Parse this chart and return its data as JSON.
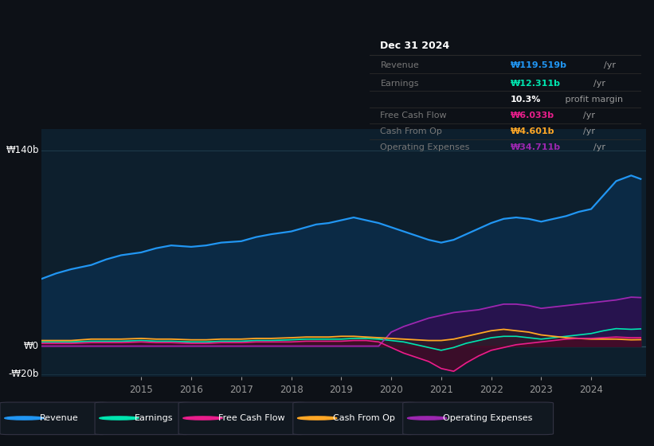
{
  "bg_color": "#0d1117",
  "plot_bg_color": "#0d1f2d",
  "revenue_color": "#2196f3",
  "earnings_color": "#00e5b0",
  "fcf_color": "#e91e8c",
  "cashfromop_color": "#ffa726",
  "opex_color": "#9c27b0",
  "ylabel_140": "₩140b",
  "ylabel_0": "₩0",
  "ylabel_neg20": "-₩20b",
  "years": [
    2013.0,
    2013.3,
    2013.6,
    2014.0,
    2014.3,
    2014.6,
    2015.0,
    2015.3,
    2015.6,
    2016.0,
    2016.3,
    2016.6,
    2017.0,
    2017.3,
    2017.6,
    2018.0,
    2018.3,
    2018.5,
    2018.75,
    2019.0,
    2019.25,
    2019.5,
    2019.75,
    2020.0,
    2020.25,
    2020.5,
    2020.75,
    2021.0,
    2021.25,
    2021.5,
    2021.75,
    2022.0,
    2022.25,
    2022.5,
    2022.75,
    2023.0,
    2023.25,
    2023.5,
    2023.75,
    2024.0,
    2024.25,
    2024.5,
    2024.8,
    2024.99
  ],
  "revenue": [
    48,
    52,
    55,
    58,
    62,
    65,
    67,
    70,
    72,
    71,
    72,
    74,
    75,
    78,
    80,
    82,
    85,
    87,
    88,
    90,
    92,
    90,
    88,
    85,
    82,
    79,
    76,
    74,
    76,
    80,
    84,
    88,
    91,
    92,
    91,
    89,
    91,
    93,
    96,
    98,
    108,
    118,
    122,
    119.519
  ],
  "earnings": [
    3,
    3,
    3,
    3.5,
    3.5,
    3.5,
    4,
    3.5,
    3.5,
    3,
    3,
    3.5,
    3.5,
    4,
    4,
    4.5,
    5,
    5,
    5,
    5,
    5.5,
    5.5,
    5,
    4,
    3,
    1,
    -1,
    -3,
    -1,
    2,
    4,
    6,
    7,
    7,
    6,
    5,
    6,
    7,
    8,
    9,
    11,
    12.5,
    12,
    12.311
  ],
  "fcf": [
    2,
    2,
    2,
    2.5,
    2.5,
    2.5,
    3,
    2.5,
    2.5,
    2,
    2,
    2.5,
    2.5,
    3,
    3,
    3,
    3.5,
    3.5,
    3.5,
    3.5,
    4,
    4,
    3,
    -1,
    -5,
    -8,
    -11,
    -16,
    -18,
    -12,
    -7,
    -3,
    -1,
    1,
    2,
    3,
    4,
    5,
    5.5,
    5.5,
    6,
    6.5,
    6,
    6.033
  ],
  "cashfromop": [
    4,
    4,
    4,
    5,
    5,
    5,
    5.5,
    5,
    5,
    4.5,
    4.5,
    5,
    5,
    5.5,
    5.5,
    6,
    6.5,
    6.5,
    6.5,
    7,
    7,
    6.5,
    6,
    5.5,
    5,
    4.5,
    4,
    4,
    5,
    7,
    9,
    11,
    12,
    11,
    10,
    8,
    7,
    6,
    5.5,
    5,
    5,
    5,
    4.5,
    4.601
  ],
  "opex": [
    0,
    0,
    0,
    0,
    0,
    0,
    0,
    0,
    0,
    0,
    0,
    0,
    0,
    0,
    0,
    0,
    0,
    0,
    0,
    0,
    0,
    0,
    0,
    10,
    14,
    17,
    20,
    22,
    24,
    25,
    26,
    28,
    30,
    30,
    29,
    27,
    28,
    29,
    30,
    31,
    32,
    33,
    35,
    34.711
  ],
  "xticks": [
    2015,
    2016,
    2017,
    2018,
    2019,
    2020,
    2021,
    2022,
    2023,
    2024
  ],
  "xlim_min": 2013.0,
  "xlim_max": 2025.1,
  "ylim_min": -22,
  "ylim_max": 155,
  "gridline_140": 140,
  "gridline_0": 0,
  "gridline_neg20": -20,
  "info_title": "Dec 31 2024",
  "info_rows": [
    {
      "label": "Revenue",
      "value": "₩119.519b",
      "suffix": " /yr",
      "color": "#2196f3"
    },
    {
      "label": "Earnings",
      "value": "₩12.311b",
      "suffix": " /yr",
      "color": "#00e5b0"
    },
    {
      "label": "",
      "value": "10.3%",
      "suffix": " profit margin",
      "color": "#ffffff"
    },
    {
      "label": "Free Cash Flow",
      "value": "₩6.033b",
      "suffix": " /yr",
      "color": "#e91e8c"
    },
    {
      "label": "Cash From Op",
      "value": "₩4.601b",
      "suffix": " /yr",
      "color": "#ffa726"
    },
    {
      "label": "Operating Expenses",
      "value": "₩34.711b",
      "suffix": " /yr",
      "color": "#9c27b0"
    }
  ],
  "legend_items": [
    {
      "label": "Revenue",
      "color": "#2196f3"
    },
    {
      "label": "Earnings",
      "color": "#00e5b0"
    },
    {
      "label": "Free Cash Flow",
      "color": "#e91e8c"
    },
    {
      "label": "Cash From Op",
      "color": "#ffa726"
    },
    {
      "label": "Operating Expenses",
      "color": "#9c27b0"
    }
  ]
}
